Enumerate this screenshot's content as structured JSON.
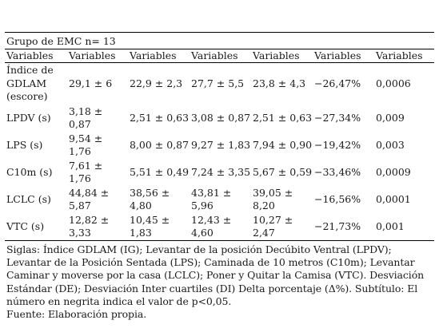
{
  "group_label": "Grupo de EMC n= 13",
  "headers": [
    "Variables",
    "Variables",
    "Variables",
    "Variables",
    "Variables",
    "Variables",
    "Variables"
  ],
  "rows": [
    {
      "label": "Índice de GDLAM (escore)",
      "c1": "29,1 ± 6",
      "c2": "22,9 ± 2,3",
      "c3": "27,7 ± 5,5",
      "c4": "23,8 ± 4,3",
      "c5": "−26,47%",
      "c6": "0,0006"
    },
    {
      "label": "LPDV (s)",
      "c1": "3,18 ± 0,87",
      "c2": "2,51 ± 0,63",
      "c3": "3,08 ± 0,87",
      "c4": "2,51 ± 0,63",
      "c5": "−27,34%",
      "c6": "0,009"
    },
    {
      "label": "LPS (s)",
      "c1": "9,54 ± 1,76",
      "c2": "8,00 ± 0,87",
      "c3": "9,27 ± 1,83",
      "c4": "7,94 ± 0,90",
      "c5": "−19,42%",
      "c6": "0,003"
    },
    {
      "label": "C10m (s)",
      "c1": "7,61 ± 1,76",
      "c2": "5,51 ± 0,49",
      "c3": "7,24 ± 3,35",
      "c4": "5,67 ± 0,59",
      "c5": "−33,46%",
      "c6": "0,0009"
    },
    {
      "label": "LCLC (s)",
      "c1": "44,84 ± 5,87",
      "c2": "38,56 ± 4,80",
      "c3": "43,81 ± 5,96",
      "c4": "39,05 ± 8,20",
      "c5": "−16,56%",
      "c6": "0,0001"
    },
    {
      "label": "VTC (s)",
      "c1": "12,82 ± 3,33",
      "c2": "10,45 ± 1,83",
      "c3": "12,43 ± 4,60",
      "c4": "10,27 ± 2,47",
      "c5": "−21,73%",
      "c6": "0,001"
    }
  ],
  "notes": {
    "siglas": "Siglas: Índice GDLAM (IG); Levantar de la posición Decúbito Ventral (LPDV); Levantar de la Posición Sentada (LPS); Caminada de 10 metros (C10m); Levantar Caminar y moverse por la casa (LCLC); Poner y Quitar la Camisa (VTC). Desviación Estándar (DE); Desviación Inter cuartiles (DI) Delta porcentaje  (Δ%). Subtítulo: El número en negrita indica el valor de p<0,05.",
    "fuente": "Fuente: Elaboración propia."
  }
}
